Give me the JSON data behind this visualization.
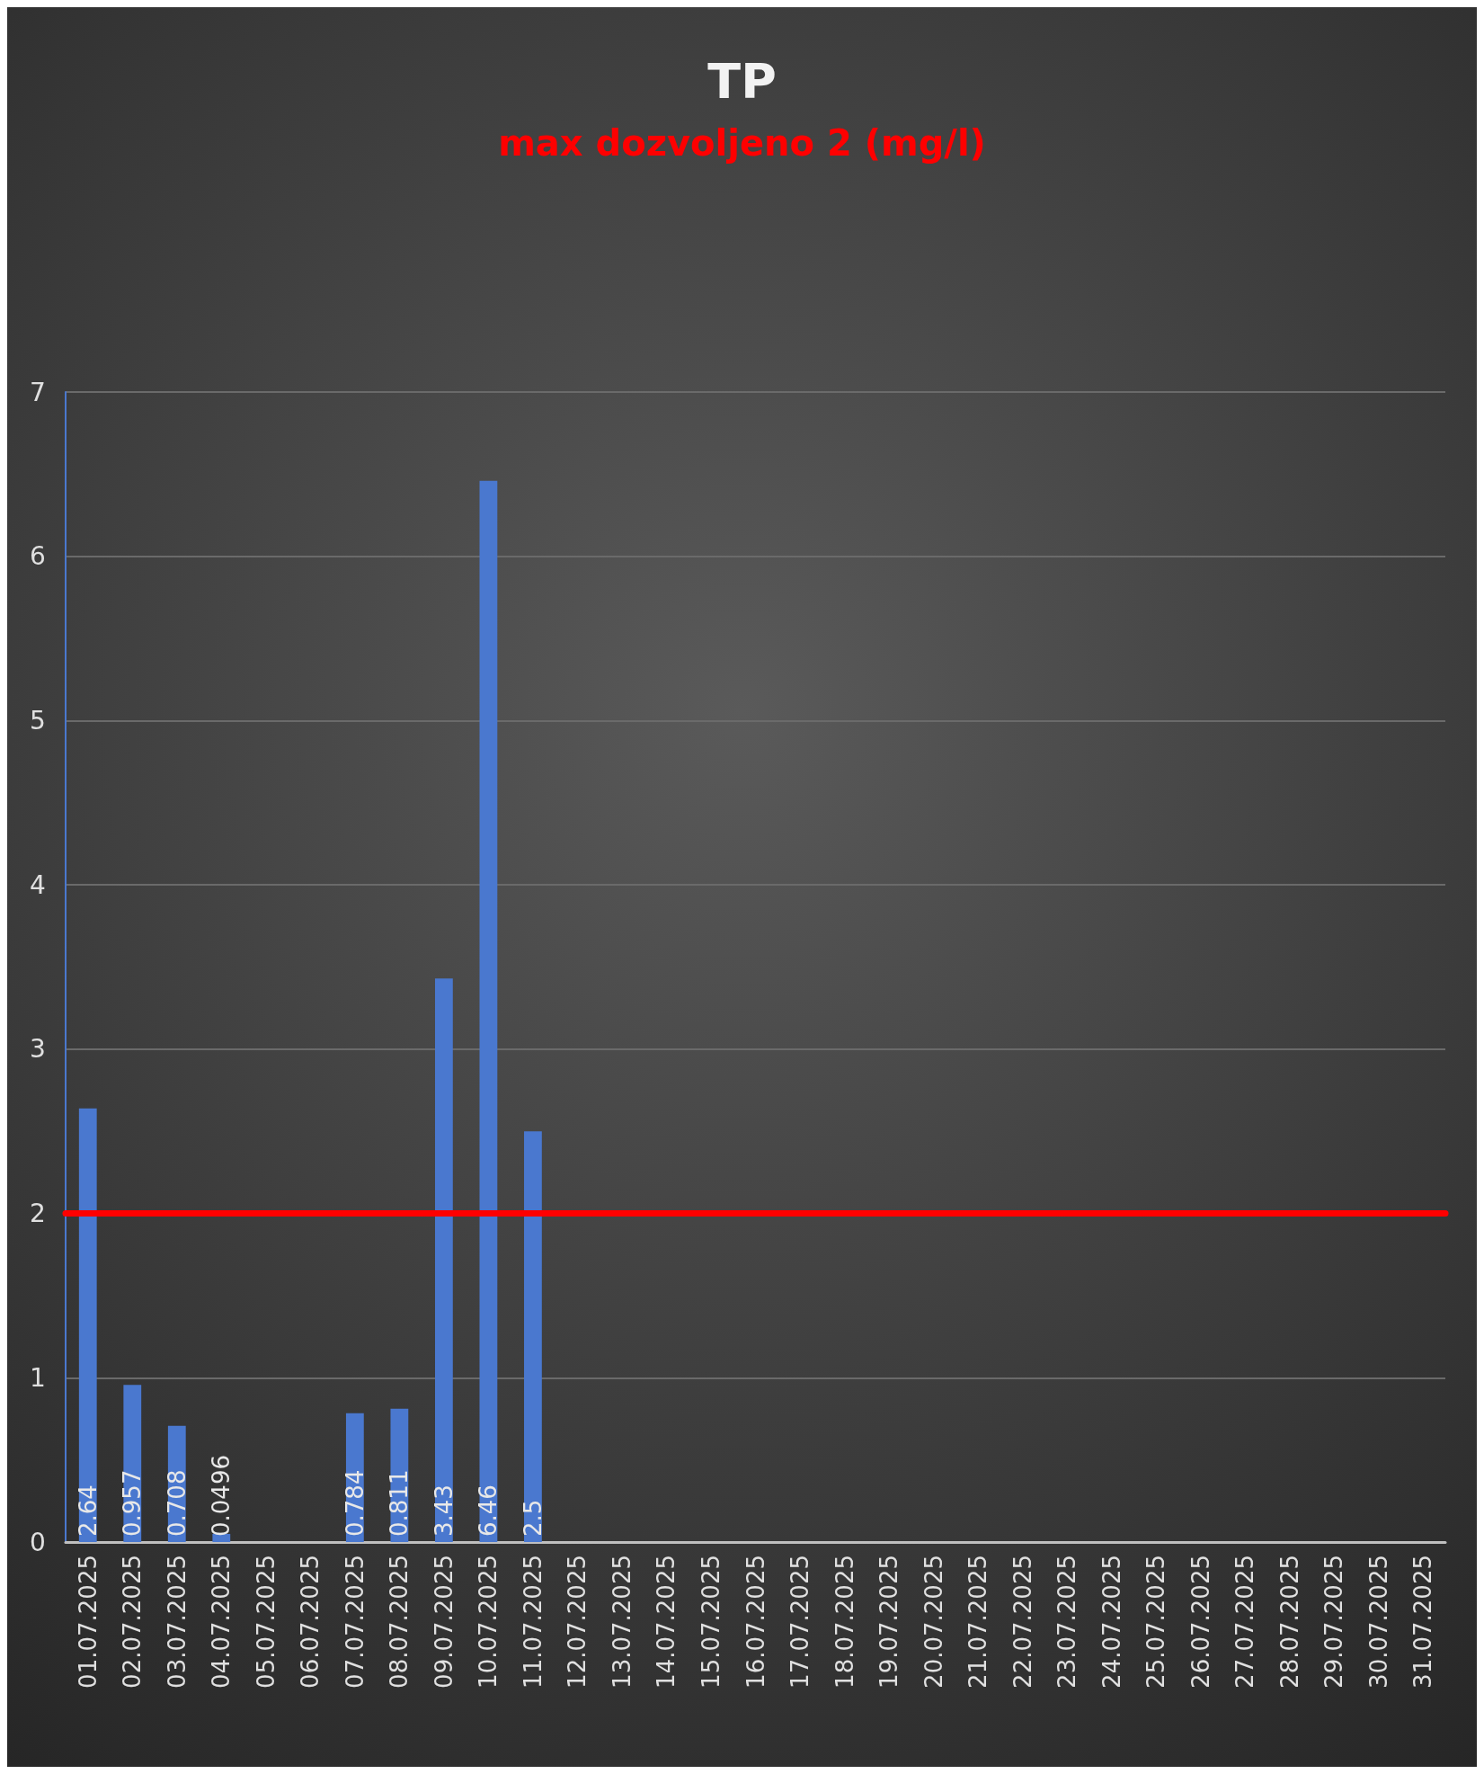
{
  "chart_data": {
    "type": "bar",
    "title": "TP",
    "subtitle": "max dozvoljeno 2 (mg/l)",
    "categories": [
      "01.07.2025",
      "02.07.2025",
      "03.07.2025",
      "04.07.2025",
      "05.07.2025",
      "06.07.2025",
      "07.07.2025",
      "08.07.2025",
      "09.07.2025",
      "10.07.2025",
      "11.07.2025",
      "12.07.2025",
      "13.07.2025",
      "14.07.2025",
      "15.07.2025",
      "16.07.2025",
      "17.07.2025",
      "18.07.2025",
      "19.07.2025",
      "20.07.2025",
      "21.07.2025",
      "22.07.2025",
      "23.07.2025",
      "24.07.2025",
      "25.07.2025",
      "26.07.2025",
      "27.07.2025",
      "28.07.2025",
      "29.07.2025",
      "30.07.2025",
      "31.07.2025"
    ],
    "values": [
      2.64,
      0.957,
      0.708,
      0.0496,
      null,
      null,
      0.784,
      0.811,
      3.43,
      6.46,
      2.5,
      null,
      null,
      null,
      null,
      null,
      null,
      null,
      null,
      null,
      null,
      null,
      null,
      null,
      null,
      null,
      null,
      null,
      null,
      null,
      null
    ],
    "color": "#4a78cf",
    "ylim": [
      0,
      7
    ],
    "yticks": [
      0,
      1,
      2,
      3,
      4,
      5,
      6,
      7
    ],
    "grid": "y",
    "data_labels": true,
    "ref_lines": [
      {
        "axis": "y",
        "value": 2,
        "color": "#ff0000"
      }
    ]
  }
}
